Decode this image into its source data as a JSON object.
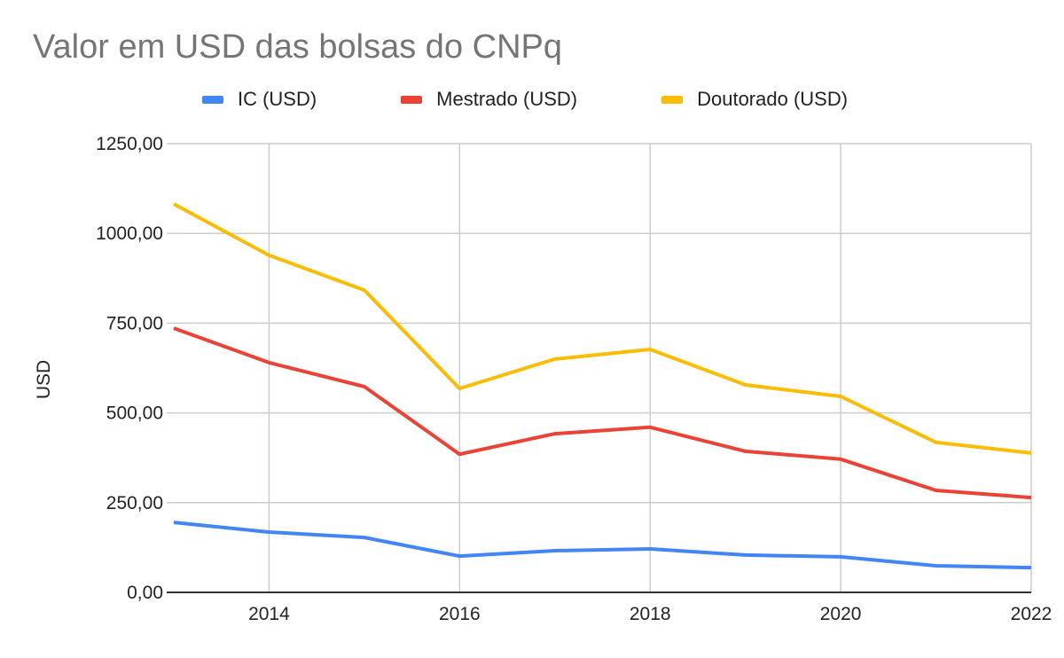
{
  "chart_data": {
    "type": "line",
    "title": "Valor em USD das bolsas do CNPq",
    "xlabel": "",
    "ylabel": "USD",
    "x": [
      2013,
      2014,
      2015,
      2016,
      2017,
      2018,
      2019,
      2020,
      2021,
      2022
    ],
    "xlim": [
      2013,
      2022
    ],
    "ylim": [
      0,
      1250
    ],
    "x_ticks": [
      "2014",
      "2016",
      "2018",
      "2020",
      "2022"
    ],
    "x_tick_values": [
      2014,
      2016,
      2018,
      2020,
      2022
    ],
    "y_ticks": [
      "0,00",
      "250,00",
      "500,00",
      "750,00",
      "1000,00",
      "1250,00"
    ],
    "y_tick_values": [
      0,
      250,
      500,
      750,
      1000,
      1250
    ],
    "grid": true,
    "legend_position": "top",
    "series": [
      {
        "name": "IC (USD)",
        "color": "#4285f4",
        "values": [
          195,
          168,
          153,
          101,
          116,
          121,
          104,
          99,
          74,
          69
        ]
      },
      {
        "name": "Mestrado (USD)",
        "color": "#ea4335",
        "values": [
          736,
          640,
          573,
          385,
          442,
          460,
          393,
          371,
          284,
          264
        ]
      },
      {
        "name": "Doutorado (USD)",
        "color": "#fbbc04",
        "values": [
          1082,
          939,
          842,
          568,
          650,
          677,
          578,
          546,
          418,
          388
        ]
      }
    ]
  }
}
